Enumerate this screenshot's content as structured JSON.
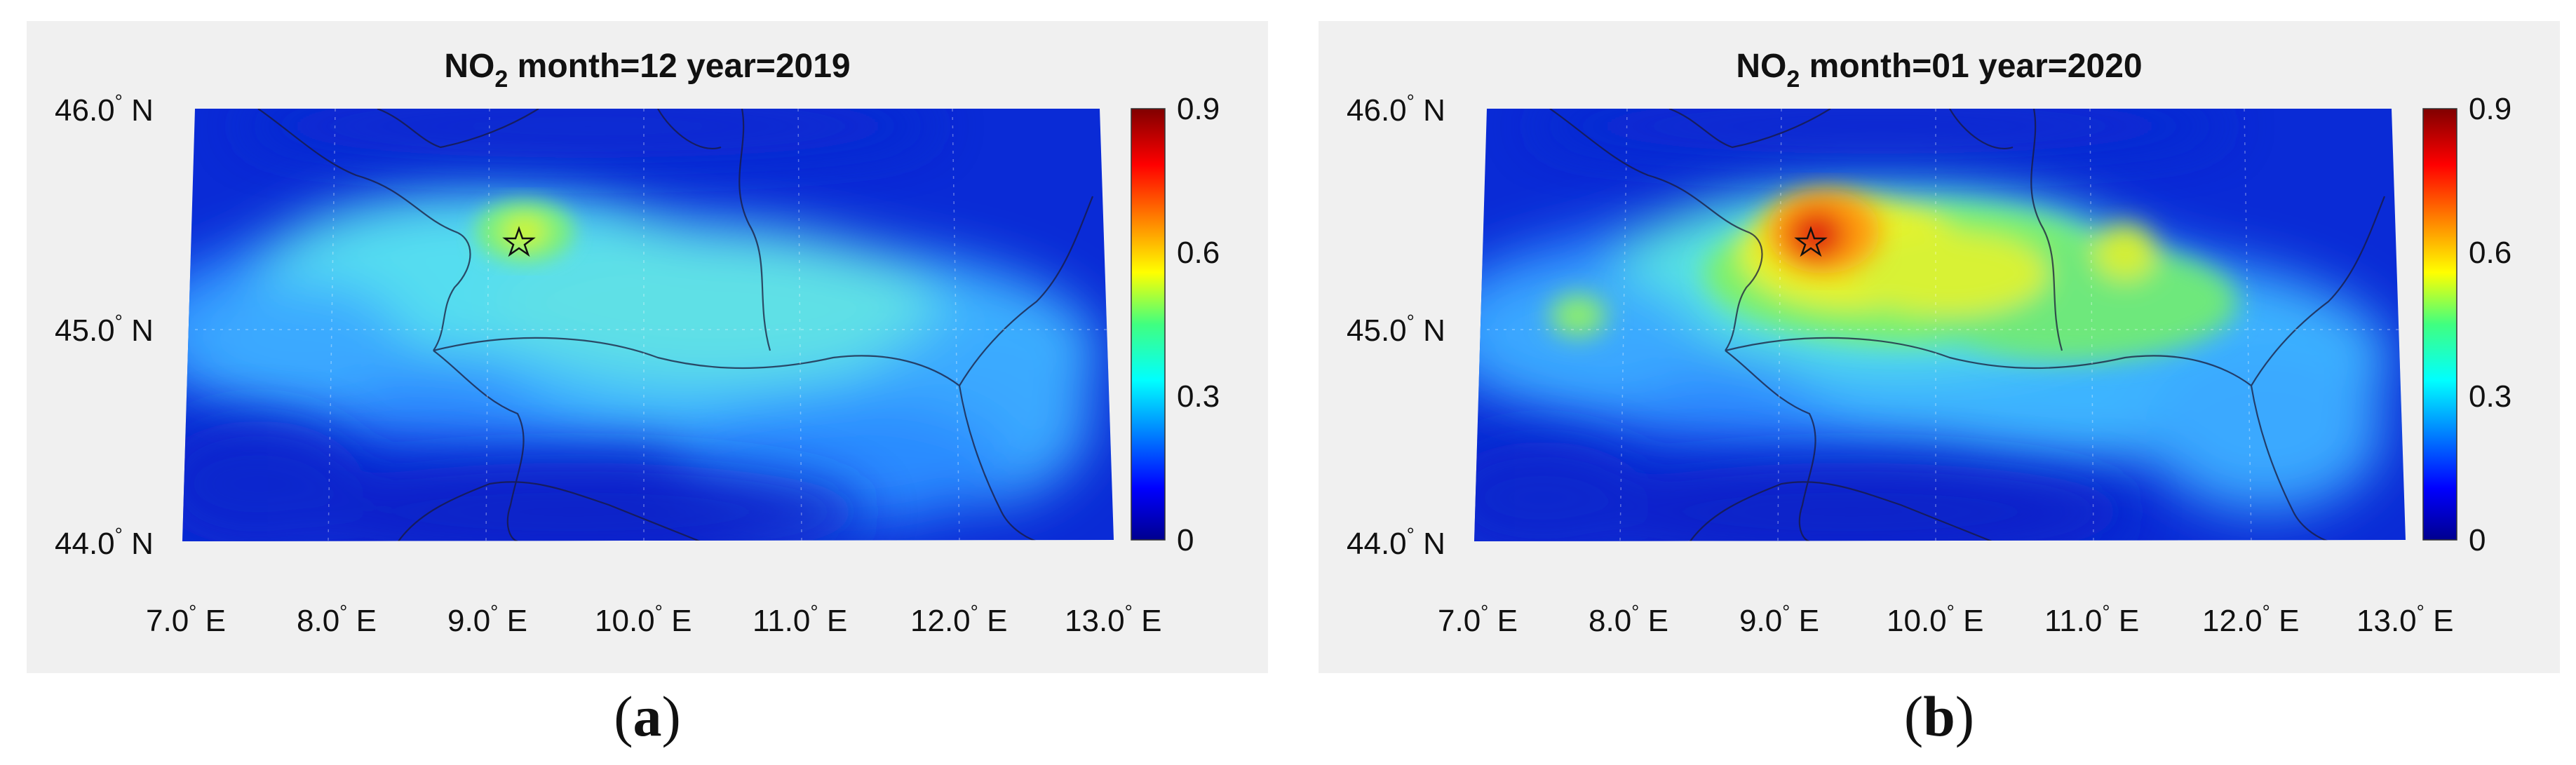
{
  "panels": [
    {
      "id": "a",
      "title": {
        "pollutant": "NO",
        "subscript": "2",
        "rest": " month=12 year=2019"
      },
      "caption": "a",
      "hotspot_intensity": 0.6
    },
    {
      "id": "b",
      "title": {
        "pollutant": "NO",
        "subscript": "2",
        "rest": " month=01 year=2020"
      },
      "caption": "b",
      "hotspot_intensity": 0.9
    }
  ],
  "latitude_labels": [
    "46.0",
    "45.0",
    "44.0"
  ],
  "latitude_suffix": "N",
  "longitude_labels": [
    "7.0",
    "8.0",
    "9.0",
    "10.0",
    "11.0",
    "12.0",
    "13.0"
  ],
  "longitude_suffix": "E",
  "colorbar": {
    "ticks": [
      "0.9",
      "0.6",
      "0.3",
      "0"
    ],
    "min": 0,
    "max": 0.9,
    "colormap": "jet"
  },
  "marker": {
    "type": "star",
    "lon": 9.19,
    "lat": 45.46
  },
  "colors": {
    "background": "#0a2bd6",
    "panel": "#f0f0f0"
  }
}
